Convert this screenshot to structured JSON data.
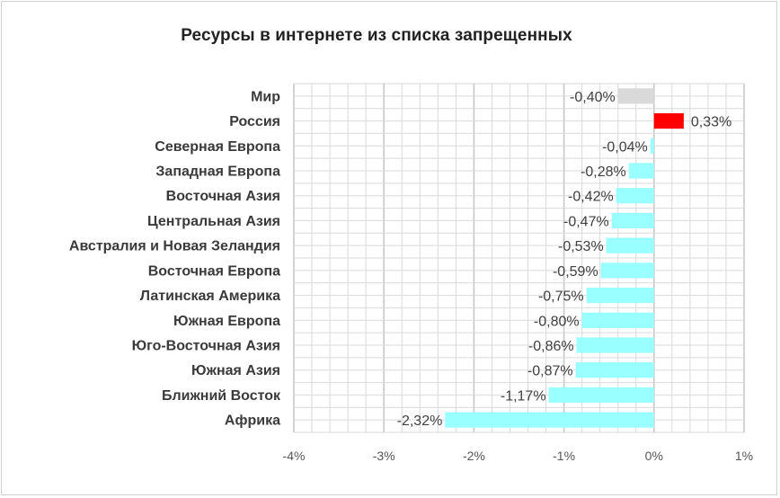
{
  "chart_data": {
    "type": "bar",
    "orientation": "horizontal",
    "title": "Ресурсы в интернете из списка запрещенных",
    "categories": [
      "Мир",
      "Россия",
      "Северная Европа",
      "Западная Европа",
      "Восточная Азия",
      "Центральная Азия",
      "Австралия и Новая Зеландия",
      "Восточная Европа",
      "Латинская Америка",
      "Южная Европа",
      "Юго-Восточная Азия",
      "Южная Азия",
      "Ближний Восток",
      "Африка"
    ],
    "values": [
      -0.4,
      0.33,
      -0.04,
      -0.28,
      -0.42,
      -0.47,
      -0.53,
      -0.59,
      -0.75,
      -0.8,
      -0.86,
      -0.87,
      -1.17,
      -2.32
    ],
    "data_labels": [
      "-0,40%",
      "0,33%",
      "-0,04%",
      "-0,28%",
      "-0,42%",
      "-0,47%",
      "-0,53%",
      "-0,59%",
      "-0,75%",
      "-0,80%",
      "-0,86%",
      "-0,87%",
      "-1,17%",
      "-2,32%"
    ],
    "xlim": [
      -4,
      1
    ],
    "x_ticks": [
      "-4%",
      "-3%",
      "-2%",
      "-1%",
      "0%",
      "1%"
    ],
    "grid": true,
    "colors": {
      "world": "#d9d9d9",
      "russia": "#ff0000",
      "regions": "#99ffff",
      "gridline": "#d9d9d9"
    }
  }
}
